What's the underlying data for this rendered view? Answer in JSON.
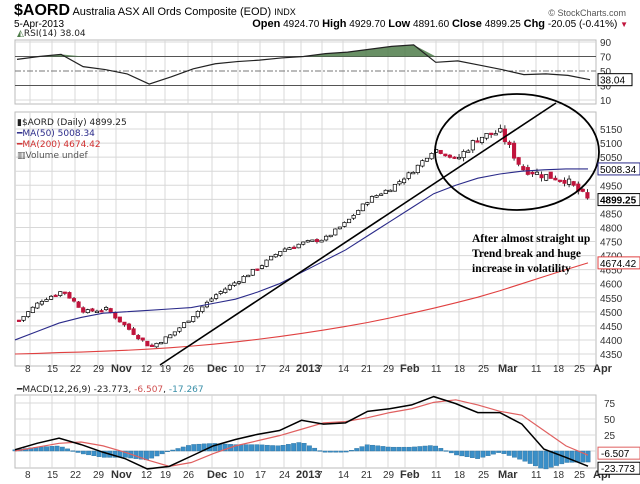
{
  "header": {
    "symbol": "$AORD",
    "name": "Australia ASX All Ords Composite (EOD)",
    "exchange": "INDX",
    "date": "5-Apr-2013",
    "open_label": "Open",
    "open": "4924.70",
    "high_label": "High",
    "high": "4929.70",
    "low_label": "Low",
    "low": "4891.60",
    "close_label": "Close",
    "close": "4899.25",
    "chg_label": "Chg",
    "chg": "-20.05 (-0.41%)",
    "chg_arrow": "▼",
    "watermark": "© StockCharts.com"
  },
  "rsi_panel": {
    "legend": "RSI(14) 38.04",
    "current_value": "38.04",
    "ticks": [
      "90",
      "70",
      "50",
      "30",
      "10"
    ]
  },
  "price_panel": {
    "legend_main": "$AORD (Daily) 4899.25",
    "legend_ma50": "MA(50) 5008.34",
    "legend_ma200": "MA(200) 4674.42",
    "legend_volume": "Volume undef",
    "ticks": [
      "5150",
      "5100",
      "5050",
      "5000",
      "4950",
      "4900",
      "4850",
      "4800",
      "4750",
      "4700",
      "4650",
      "4600",
      "4550",
      "4500",
      "4450",
      "4400",
      "4350"
    ],
    "tag_ma50": "5008.34",
    "tag_close": "4899.25",
    "tag_ma200": "4674.42",
    "annotation": [
      "After almost straight up",
      "Trend break and huge",
      "increase in volatility"
    ]
  },
  "macd_panel": {
    "legend_label": "MACD(12,26,9)",
    "legend_macd": "-23.773",
    "legend_signal": "-6.507",
    "legend_hist": "-17.267",
    "ticks": [
      "75",
      "50",
      "25",
      "0"
    ],
    "tag_signal": "-6.507",
    "tag_macd": "-23.773"
  },
  "x_axis": {
    "labels": [
      "8",
      "15",
      "22",
      "29",
      "Nov",
      "12",
      "19",
      "26",
      "Dec",
      "10",
      "17",
      "24",
      "2013",
      "7",
      "14",
      "21",
      "29",
      "Feb",
      "11",
      "18",
      "25",
      "Mar",
      "11",
      "18",
      "25",
      "Apr"
    ]
  },
  "colors": {
    "up_candle": "#ffffff",
    "down_candle": "#c0143c",
    "ma50": "#2b2b8a",
    "ma200": "#e04040",
    "rsi_fill": "#4f7d4a",
    "macd_line": "#000000",
    "signal_line": "#e06060",
    "histogram": "#3a8fc8",
    "grid": "#d8d8d8"
  },
  "chart_data": [
    {
      "type": "line",
      "title": "RSI(14)",
      "ylim": [
        0,
        100
      ],
      "reference_lines": [
        70,
        50,
        30
      ],
      "x": [
        "Oct 8",
        "Oct 15",
        "Oct 22",
        "Oct 29",
        "Nov 5",
        "Nov 12",
        "Nov 19",
        "Nov 26",
        "Dec 3",
        "Dec 10",
        "Dec 17",
        "Dec 24",
        "Jan 2",
        "Jan 7",
        "Jan 14",
        "Jan 21",
        "Jan 29",
        "Feb 4",
        "Feb 11",
        "Feb 18",
        "Feb 25",
        "Mar 4",
        "Mar 11",
        "Mar 18",
        "Mar 25",
        "Apr 1",
        "Apr 5"
      ],
      "values": [
        66,
        70,
        73,
        56,
        52,
        46,
        32,
        42,
        53,
        60,
        63,
        65,
        68,
        70,
        74,
        76,
        80,
        84,
        86,
        62,
        64,
        58,
        52,
        45,
        46,
        44,
        38
      ]
    },
    {
      "type": "candlestick",
      "title": "$AORD (Daily) 4899.25",
      "ylabel": "Price",
      "ylim": [
        4330,
        5180
      ],
      "x": [
        "Oct 8",
        "Oct 15",
        "Oct 22",
        "Oct 29",
        "Nov 5",
        "Nov 12",
        "Nov 19",
        "Nov 26",
        "Dec 3",
        "Dec 10",
        "Dec 17",
        "Dec 24",
        "Jan 2",
        "Jan 7",
        "Jan 14",
        "Jan 21",
        "Jan 29",
        "Feb 4",
        "Feb 11",
        "Feb 18",
        "Feb 25",
        "Mar 4",
        "Mar 11",
        "Mar 18",
        "Mar 25",
        "Apr 1",
        "Apr 5"
      ],
      "close": [
        4470,
        4540,
        4575,
        4500,
        4510,
        4440,
        4375,
        4420,
        4490,
        4560,
        4610,
        4660,
        4720,
        4745,
        4760,
        4820,
        4900,
        4940,
        5000,
        5080,
        5040,
        5120,
        5140,
        5010,
        4985,
        4970,
        4899
      ],
      "series": [
        {
          "name": "MA(50)",
          "values": [
            4400,
            4430,
            4460,
            4480,
            4495,
            4500,
            4505,
            4510,
            4515,
            4530,
            4545,
            4570,
            4600,
            4640,
            4680,
            4720,
            4770,
            4820,
            4870,
            4920,
            4950,
            4975,
            4990,
            5000,
            5005,
            5008,
            5008
          ]
        },
        {
          "name": "MA(200)",
          "values": [
            4350,
            4352,
            4355,
            4357,
            4360,
            4363,
            4367,
            4372,
            4378,
            4385,
            4393,
            4402,
            4412,
            4423,
            4435,
            4448,
            4462,
            4478,
            4495,
            4513,
            4532,
            4552,
            4575,
            4600,
            4625,
            4650,
            4674
          ]
        }
      ],
      "annotations": [
        "Trend line from Nov 15 low through Mar highs",
        "Ellipse around Feb-Apr volatility",
        "After almost straight up Trend break and huge increase in volatility"
      ]
    },
    {
      "type": "line",
      "title": "MACD(12,26,9)",
      "ylim": [
        -35,
        95
      ],
      "x": [
        "Oct 8",
        "Oct 15",
        "Oct 22",
        "Oct 29",
        "Nov 5",
        "Nov 12",
        "Nov 19",
        "Nov 26",
        "Dec 3",
        "Dec 10",
        "Dec 17",
        "Dec 24",
        "Jan 2",
        "Jan 7",
        "Jan 14",
        "Jan 21",
        "Jan 29",
        "Feb 4",
        "Feb 11",
        "Feb 18",
        "Feb 25",
        "Mar 4",
        "Mar 11",
        "Mar 18",
        "Mar 25",
        "Apr 1",
        "Apr 5"
      ],
      "series": [
        {
          "name": "MACD",
          "values": [
            2,
            12,
            20,
            10,
            -2,
            -12,
            -28,
            -24,
            -8,
            8,
            18,
            26,
            32,
            48,
            42,
            44,
            62,
            66,
            72,
            85,
            74,
            60,
            60,
            42,
            3,
            -10,
            -23.773
          ]
        },
        {
          "name": "Signal",
          "values": [
            0,
            6,
            12,
            14,
            8,
            -2,
            -14,
            -24,
            -18,
            -4,
            8,
            16,
            24,
            34,
            44,
            46,
            52,
            60,
            66,
            76,
            80,
            72,
            62,
            56,
            32,
            8,
            -6.507
          ]
        },
        {
          "name": "Histogram",
          "values": [
            2,
            6,
            8,
            -4,
            -10,
            -10,
            -14,
            0,
            10,
            12,
            10,
            10,
            8,
            14,
            -2,
            -2,
            10,
            6,
            6,
            9,
            -6,
            -12,
            -2,
            -14,
            -29,
            -18,
            -17.267
          ]
        }
      ]
    }
  ]
}
